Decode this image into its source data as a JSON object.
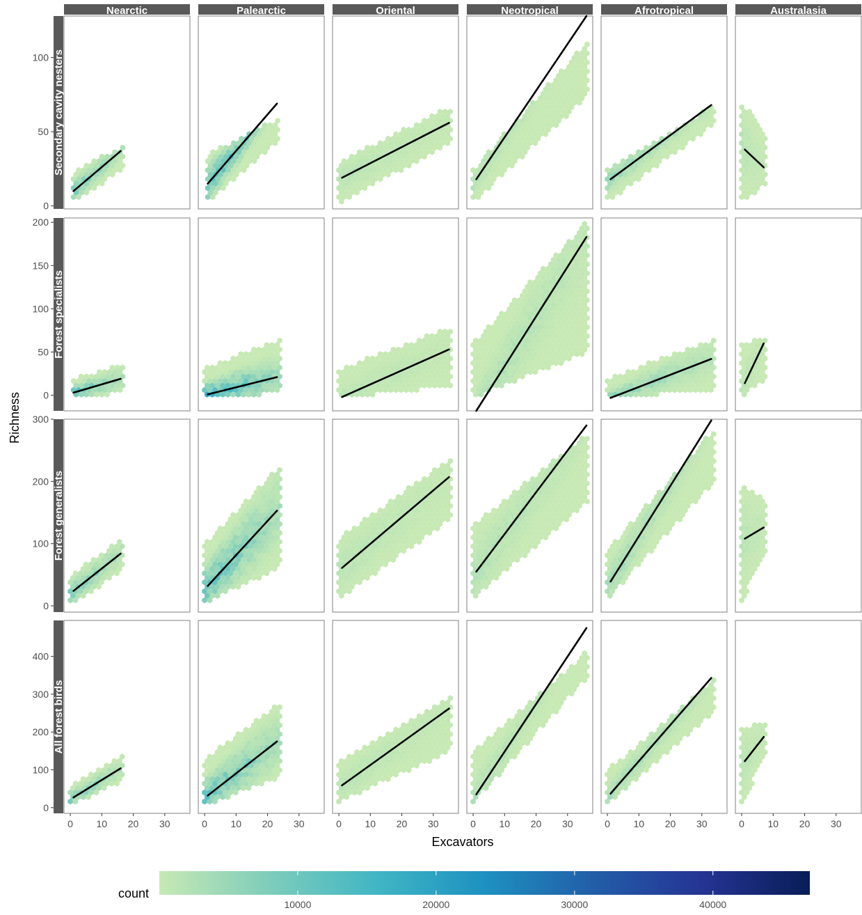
{
  "chart_data": {
    "type": "hexbin-scatter-faceted",
    "xlabel": "Excavators",
    "ylabel": "Richness",
    "x_ticks": [
      0,
      10,
      20,
      30
    ],
    "xlim": [
      -2,
      38
    ],
    "columns": [
      "Nearctic",
      "Palearctic",
      "Oriental",
      "Neotropical",
      "Afrotropical",
      "Australasia"
    ],
    "rows": [
      {
        "name": "Secondary cavity nesters",
        "ylim": [
          -2,
          128
        ],
        "y_ticks": [
          0,
          50,
          100
        ],
        "panels": [
          {
            "column": "Nearctic",
            "fit": [
              [
                1,
                10
              ],
              [
                16,
                37
              ]
            ],
            "xr": [
              1,
              17
            ],
            "low": [
              [
                1,
                2
              ],
              [
                17,
                25
              ]
            ],
            "high": [
              [
                1,
                24
              ],
              [
                17,
                41
              ]
            ],
            "density": 0.55
          },
          {
            "column": "Palearctic",
            "fit": [
              [
                1,
                15
              ],
              [
                23,
                69
              ]
            ],
            "xr": [
              1,
              24
            ],
            "low": [
              [
                1,
                2
              ],
              [
                24,
                45
              ]
            ],
            "high": [
              [
                1,
                35
              ],
              [
                24,
                60
              ]
            ],
            "density": 0.75
          },
          {
            "column": "Oriental",
            "fit": [
              [
                1,
                19
              ],
              [
                35,
                56
              ]
            ],
            "xr": [
              0,
              36
            ],
            "low": [
              [
                0,
                2
              ],
              [
                36,
                42
              ]
            ],
            "high": [
              [
                0,
                30
              ],
              [
                36,
                68
              ]
            ],
            "density": 0.15
          },
          {
            "column": "Neotropical",
            "fit": [
              [
                1,
                18
              ],
              [
                36,
                128
              ]
            ],
            "xr": [
              0,
              37
            ],
            "low": [
              [
                0,
                2
              ],
              [
                37,
                75
              ]
            ],
            "high": [
              [
                0,
                25
              ],
              [
                37,
                113
              ]
            ],
            "density": 0.2
          },
          {
            "column": "Afrotropical",
            "fit": [
              [
                1,
                18
              ],
              [
                33,
                68
              ]
            ],
            "xr": [
              0,
              34
            ],
            "low": [
              [
                0,
                2
              ],
              [
                34,
                55
              ]
            ],
            "high": [
              [
                0,
                25
              ],
              [
                34,
                68
              ]
            ],
            "density": 0.35
          },
          {
            "column": "Australasia",
            "fit": [
              [
                1,
                38
              ],
              [
                7,
                26
              ]
            ],
            "xr": [
              0,
              8
            ],
            "low": [
              [
                0,
                2
              ],
              [
                8,
                15
              ]
            ],
            "high": [
              [
                0,
                72
              ],
              [
                8,
                45
              ]
            ],
            "density": 0.15
          }
        ]
      },
      {
        "name": "Forest specialists",
        "ylim": [
          -18,
          205
        ],
        "y_ticks": [
          0,
          50,
          100,
          150,
          200
        ],
        "panels": [
          {
            "column": "Nearctic",
            "fit": [
              [
                1,
                3
              ],
              [
                16,
                19
              ]
            ],
            "xr": [
              1,
              17
            ],
            "low": [
              [
                1,
                -2
              ],
              [
                17,
                2
              ]
            ],
            "high": [
              [
                1,
                20
              ],
              [
                17,
                36
              ]
            ],
            "density": 0.7
          },
          {
            "column": "Palearctic",
            "fit": [
              [
                1,
                1
              ],
              [
                23,
                21
              ]
            ],
            "xr": [
              0,
              24
            ],
            "low": [
              [
                0,
                -3
              ],
              [
                24,
                2
              ]
            ],
            "high": [
              [
                0,
                32
              ],
              [
                24,
                65
              ]
            ],
            "density": 0.9
          },
          {
            "column": "Oriental",
            "fit": [
              [
                1,
                -2
              ],
              [
                35,
                53
              ]
            ],
            "xr": [
              0,
              36
            ],
            "low": [
              [
                0,
                -3
              ],
              [
                36,
                10
              ]
            ],
            "high": [
              [
                0,
                30
              ],
              [
                36,
                80
              ]
            ],
            "density": 0.15
          },
          {
            "column": "Neotropical",
            "fit": [
              [
                1,
                -18
              ],
              [
                36,
                183
              ]
            ],
            "xr": [
              0,
              37
            ],
            "low": [
              [
                0,
                -3
              ],
              [
                37,
                50
              ]
            ],
            "high": [
              [
                0,
                60
              ],
              [
                37,
                205
              ]
            ],
            "density": 0.25
          },
          {
            "column": "Afrotropical",
            "fit": [
              [
                1,
                -3
              ],
              [
                33,
                42
              ]
            ],
            "xr": [
              0,
              34
            ],
            "low": [
              [
                0,
                -3
              ],
              [
                34,
                5
              ]
            ],
            "high": [
              [
                0,
                20
              ],
              [
                34,
                65
              ]
            ],
            "density": 0.45
          },
          {
            "column": "Australasia",
            "fit": [
              [
                1,
                14
              ],
              [
                7,
                60
              ]
            ],
            "xr": [
              0,
              8
            ],
            "low": [
              [
                0,
                -2
              ],
              [
                8,
                20
              ]
            ],
            "high": [
              [
                0,
                60
              ],
              [
                8,
                70
              ]
            ],
            "density": 0.15
          }
        ]
      },
      {
        "name": "Forest generalists",
        "ylim": [
          -10,
          300
        ],
        "y_ticks": [
          0,
          100,
          200,
          300
        ],
        "panels": [
          {
            "column": "Nearctic",
            "fit": [
              [
                1,
                24
              ],
              [
                16,
                84
              ]
            ],
            "xr": [
              0,
              17
            ],
            "low": [
              [
                0,
                2
              ],
              [
                17,
                55
              ]
            ],
            "high": [
              [
                0,
                50
              ],
              [
                17,
                110
              ]
            ],
            "density": 0.55
          },
          {
            "column": "Palearctic",
            "fit": [
              [
                1,
                32
              ],
              [
                23,
                153
              ]
            ],
            "xr": [
              0,
              24
            ],
            "low": [
              [
                0,
                5
              ],
              [
                24,
                60
              ]
            ],
            "high": [
              [
                0,
                100
              ],
              [
                24,
                225
              ]
            ],
            "density": 0.7
          },
          {
            "column": "Oriental",
            "fit": [
              [
                1,
                61
              ],
              [
                35,
                207
              ]
            ],
            "xr": [
              0,
              36
            ],
            "low": [
              [
                0,
                10
              ],
              [
                36,
                140
              ]
            ],
            "high": [
              [
                0,
                110
              ],
              [
                36,
                240
              ]
            ],
            "density": 0.15
          },
          {
            "column": "Neotropical",
            "fit": [
              [
                1,
                55
              ],
              [
                36,
                290
              ]
            ],
            "xr": [
              0,
              37
            ],
            "low": [
              [
                0,
                10
              ],
              [
                37,
                170
              ]
            ],
            "high": [
              [
                0,
                130
              ],
              [
                37,
                280
              ]
            ],
            "density": 0.2
          },
          {
            "column": "Afrotropical",
            "fit": [
              [
                1,
                39
              ],
              [
                33,
                298
              ]
            ],
            "xr": [
              0,
              34
            ],
            "low": [
              [
                0,
                10
              ],
              [
                34,
                200
              ]
            ],
            "high": [
              [
                0,
                90
              ],
              [
                34,
                285
              ]
            ],
            "density": 0.3
          },
          {
            "column": "Australasia",
            "fit": [
              [
                1,
                108
              ],
              [
                7,
                126
              ]
            ],
            "xr": [
              0,
              8
            ],
            "low": [
              [
                0,
                5
              ],
              [
                8,
                90
              ]
            ],
            "high": [
              [
                0,
                195
              ],
              [
                8,
                170
              ]
            ],
            "density": 0.15
          }
        ]
      },
      {
        "name": "All forest birds",
        "ylim": [
          -15,
          495
        ],
        "y_ticks": [
          0,
          100,
          200,
          300,
          400
        ],
        "panels": [
          {
            "column": "Nearctic",
            "fit": [
              [
                1,
                27
              ],
              [
                16,
                104
              ]
            ],
            "xr": [
              0,
              17
            ],
            "low": [
              [
                0,
                5
              ],
              [
                17,
                70
              ]
            ],
            "high": [
              [
                0,
                60
              ],
              [
                17,
                140
              ]
            ],
            "density": 0.55
          },
          {
            "column": "Palearctic",
            "fit": [
              [
                1,
                32
              ],
              [
                23,
                175
              ]
            ],
            "xr": [
              0,
              24
            ],
            "low": [
              [
                0,
                5
              ],
              [
                24,
                80
              ]
            ],
            "high": [
              [
                0,
                130
              ],
              [
                24,
                280
              ]
            ],
            "density": 0.7
          },
          {
            "column": "Oriental",
            "fit": [
              [
                1,
                59
              ],
              [
                35,
                262
              ]
            ],
            "xr": [
              0,
              36
            ],
            "low": [
              [
                0,
                15
              ],
              [
                36,
                150
              ]
            ],
            "high": [
              [
                0,
                120
              ],
              [
                36,
                300
              ]
            ],
            "density": 0.15
          },
          {
            "column": "Neotropical",
            "fit": [
              [
                1,
                35
              ],
              [
                36,
                475
              ]
            ],
            "xr": [
              0,
              37
            ],
            "low": [
              [
                0,
                10
              ],
              [
                37,
                350
              ]
            ],
            "high": [
              [
                0,
                150
              ],
              [
                37,
                420
              ]
            ],
            "density": 0.2
          },
          {
            "column": "Afrotropical",
            "fit": [
              [
                1,
                37
              ],
              [
                33,
                343
              ]
            ],
            "xr": [
              0,
              34
            ],
            "low": [
              [
                0,
                10
              ],
              [
                34,
                250
              ]
            ],
            "high": [
              [
                0,
                100
              ],
              [
                34,
                340
              ]
            ],
            "density": 0.3
          },
          {
            "column": "Australasia",
            "fit": [
              [
                1,
                123
              ],
              [
                7,
                187
              ]
            ],
            "xr": [
              0,
              8
            ],
            "low": [
              [
                0,
                10
              ],
              [
                8,
                140
              ]
            ],
            "high": [
              [
                0,
                210
              ],
              [
                8,
                230
              ]
            ],
            "density": 0.15
          }
        ]
      }
    ],
    "legend": {
      "title": "count",
      "position": "bottom",
      "range": [
        0,
        47000
      ],
      "ticks": [
        10000,
        20000,
        30000,
        40000
      ],
      "colors": [
        "#c7e9b4",
        "#7fcdbb",
        "#41b6c4",
        "#1d91c0",
        "#225ea8",
        "#253494",
        "#081d58"
      ]
    },
    "colors": {
      "strip_background": "#595959",
      "panel_border": "#7f7f7f",
      "fit_line": "#000000"
    }
  }
}
